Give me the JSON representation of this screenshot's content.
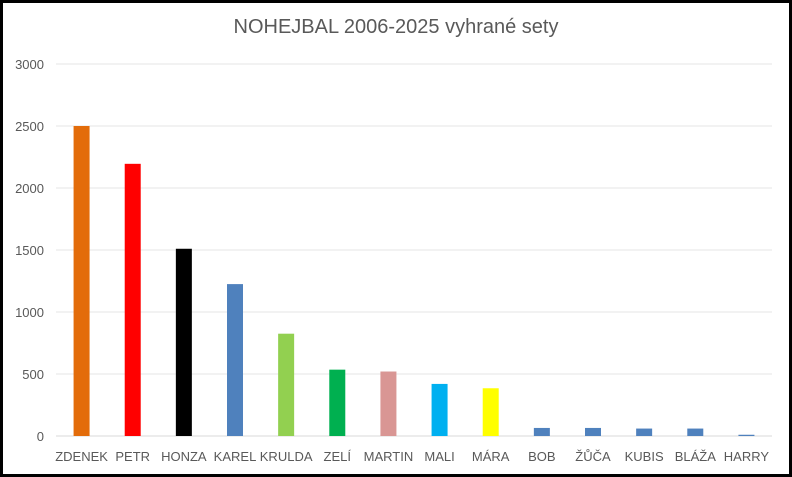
{
  "chart_data": {
    "type": "bar",
    "title": "NOHEJBAL 2006-2025 vyhrané sety",
    "xlabel": "",
    "ylabel": "",
    "ylim": [
      0,
      3000
    ],
    "yticks": [
      0,
      500,
      1000,
      1500,
      2000,
      2500,
      3000
    ],
    "grid": true,
    "legend": "none",
    "categories": [
      "ZDENEK",
      "PETR",
      "HONZA",
      "KAREL",
      "KRULDA",
      "ZELÍ",
      "MARTIN",
      "MALI",
      "MÁRA",
      "BOB",
      "ŽŮČA",
      "KUBIS",
      "BLÁŽA",
      "HARRY"
    ],
    "values": [
      2500,
      2195,
      1510,
      1225,
      825,
      535,
      520,
      420,
      385,
      65,
      65,
      60,
      60,
      10
    ],
    "colors": [
      "#E36C0A",
      "#FF0000",
      "#000000",
      "#4F81BD",
      "#92D050",
      "#00B050",
      "#D99694",
      "#00B0F0",
      "#FFFF00",
      "#4F81BD",
      "#4F81BD",
      "#4F81BD",
      "#4F81BD",
      "#4F81BD"
    ]
  }
}
